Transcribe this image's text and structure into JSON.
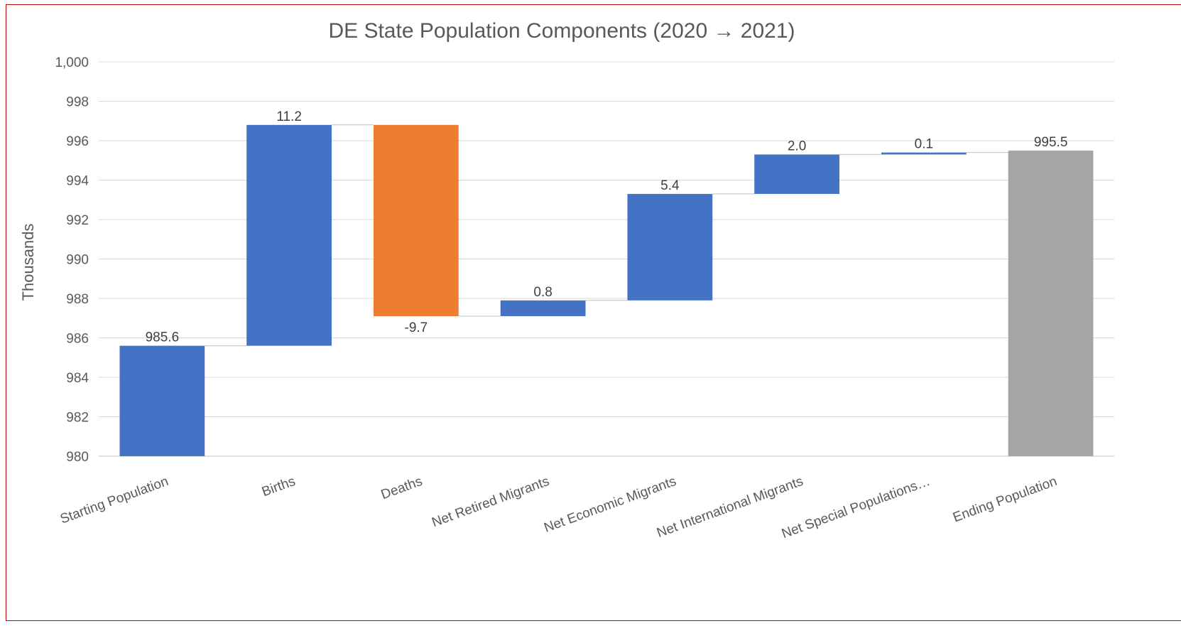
{
  "chart_data": {
    "type": "waterfall",
    "title": "DE State Population Components (2020 → 2021)",
    "ylabel": "Thousands",
    "xlabel": "",
    "ylim": [
      980,
      1000
    ],
    "yticks": [
      980,
      982,
      984,
      986,
      988,
      990,
      992,
      994,
      996,
      998,
      1000
    ],
    "ytick_labels": [
      "980",
      "982",
      "984",
      "986",
      "988",
      "990",
      "992",
      "994",
      "996",
      "998",
      "1,000"
    ],
    "grid": true,
    "categories": [
      "Starting Population",
      "Births",
      "Deaths",
      "Net Retired Migrants",
      "Net Economic Migrants",
      "Net International Migrants",
      "Net Special Populations…",
      "Ending Population"
    ],
    "values": [
      985.6,
      11.2,
      -9.7,
      0.8,
      5.4,
      2.0,
      0.1,
      995.5
    ],
    "labels": [
      "985.6",
      "11.2",
      "-9.7",
      "0.8",
      "5.4",
      "2.0",
      "0.1",
      "995.5"
    ],
    "kinds": [
      "total",
      "increase",
      "decrease",
      "increase",
      "increase",
      "increase",
      "increase",
      "total"
    ],
    "colors": {
      "increase": "#4472c4",
      "decrease": "#ed7d31",
      "start": "#4472c4",
      "end": "#a5a5a5"
    }
  }
}
